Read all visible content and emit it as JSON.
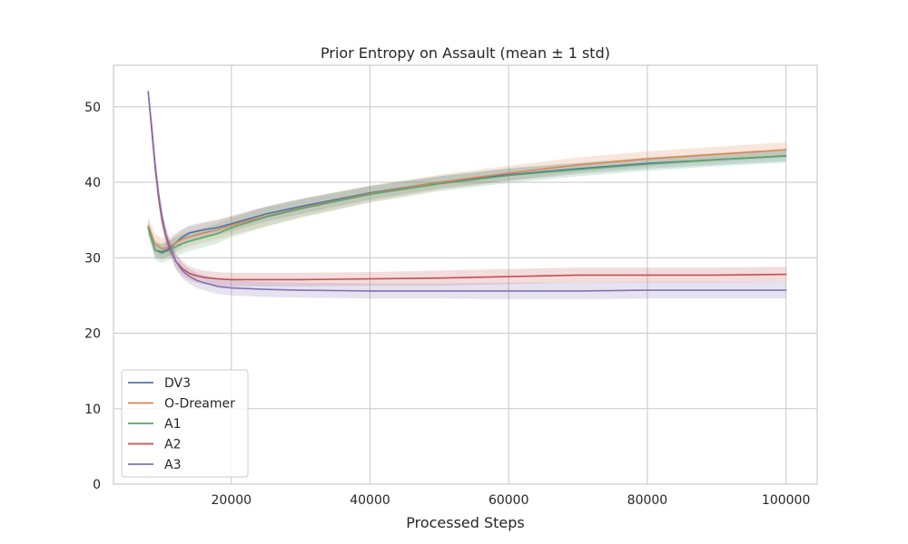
{
  "chart_data": {
    "type": "line",
    "title": "Prior Entropy on Assault (mean ± 1 std)",
    "xlabel": "Processed Steps",
    "ylabel": "",
    "xlim": [
      3000,
      104500
    ],
    "ylim": [
      0,
      55.5
    ],
    "xticks": [
      20000,
      40000,
      60000,
      80000,
      100000
    ],
    "yticks": [
      0,
      10,
      20,
      30,
      40,
      50
    ],
    "grid": true,
    "legend_position": "lower-left",
    "series": [
      {
        "name": "DV3",
        "color": "#4c72b0",
        "x": [
          8000,
          9000,
          10000,
          11000,
          12000,
          13000,
          14000,
          16000,
          18000,
          20000,
          25000,
          30000,
          40000,
          50000,
          60000,
          70000,
          80000,
          90000,
          100000
        ],
        "y": [
          34.0,
          31.0,
          30.8,
          31.2,
          32.0,
          32.8,
          33.3,
          33.7,
          34.0,
          34.5,
          35.8,
          36.8,
          38.6,
          40.0,
          41.0,
          41.8,
          42.5,
          43.0,
          43.5
        ],
        "std": [
          0.8,
          1.0,
          1.0,
          1.0,
          1.0,
          1.0,
          1.0,
          1.0,
          1.0,
          1.0,
          1.0,
          1.0,
          0.9,
          0.8,
          0.8,
          0.7,
          0.7,
          0.7,
          0.7
        ]
      },
      {
        "name": "O-Dreamer",
        "color": "#dd8452",
        "x": [
          8000,
          9000,
          10000,
          11000,
          12000,
          13000,
          14000,
          16000,
          18000,
          20000,
          25000,
          30000,
          40000,
          50000,
          60000,
          70000,
          80000,
          90000,
          100000
        ],
        "y": [
          34.2,
          31.8,
          31.2,
          31.4,
          32.0,
          32.5,
          32.8,
          33.3,
          33.7,
          34.3,
          35.5,
          36.6,
          38.5,
          40.0,
          41.2,
          42.3,
          43.1,
          43.7,
          44.3
        ],
        "std": [
          1.2,
          1.4,
          1.4,
          1.3,
          1.3,
          1.3,
          1.3,
          1.3,
          1.3,
          1.3,
          1.3,
          1.2,
          1.1,
          1.0,
          1.0,
          1.0,
          1.0,
          1.0,
          1.0
        ]
      },
      {
        "name": "A1",
        "color": "#55a868",
        "x": [
          8000,
          9000,
          10000,
          11000,
          12000,
          13000,
          14000,
          16000,
          18000,
          20000,
          25000,
          30000,
          40000,
          50000,
          60000,
          70000,
          80000,
          90000,
          100000
        ],
        "y": [
          34.0,
          31.0,
          30.6,
          31.0,
          31.5,
          31.9,
          32.2,
          32.7,
          33.2,
          34.0,
          35.4,
          36.5,
          38.4,
          39.8,
          40.9,
          41.7,
          42.4,
          43.0,
          43.5
        ],
        "std": [
          1.0,
          1.3,
          1.3,
          1.3,
          1.3,
          1.3,
          1.3,
          1.3,
          1.3,
          1.3,
          1.3,
          1.2,
          1.1,
          1.0,
          1.0,
          0.9,
          0.9,
          0.9,
          0.9
        ]
      },
      {
        "name": "A2",
        "color": "#c44e52",
        "x": [
          8000,
          8500,
          9000,
          9500,
          10000,
          10500,
          11000,
          12000,
          13000,
          14000,
          15000,
          16000,
          18000,
          20000,
          25000,
          30000,
          40000,
          50000,
          60000,
          70000,
          80000,
          90000,
          100000
        ],
        "y": [
          52.0,
          47.0,
          42.0,
          38.0,
          35.0,
          33.0,
          31.5,
          29.5,
          28.5,
          27.9,
          27.6,
          27.4,
          27.2,
          27.1,
          27.1,
          27.1,
          27.2,
          27.3,
          27.5,
          27.7,
          27.7,
          27.7,
          27.8
        ],
        "std": [
          0.6,
          0.8,
          1.0,
          1.0,
          1.0,
          1.0,
          1.0,
          1.0,
          1.0,
          0.9,
          0.9,
          0.9,
          0.9,
          0.9,
          0.9,
          0.9,
          0.9,
          1.0,
          1.0,
          1.0,
          1.0,
          1.0,
          1.0
        ]
      },
      {
        "name": "A3",
        "color": "#8172b3",
        "x": [
          8000,
          8500,
          9000,
          9500,
          10000,
          10500,
          11000,
          12000,
          13000,
          14000,
          15000,
          16000,
          18000,
          20000,
          25000,
          30000,
          40000,
          50000,
          60000,
          70000,
          80000,
          90000,
          100000
        ],
        "y": [
          52.0,
          47.5,
          42.5,
          38.5,
          35.5,
          33.3,
          31.8,
          29.5,
          28.2,
          27.5,
          27.0,
          26.7,
          26.2,
          26.0,
          25.8,
          25.7,
          25.6,
          25.6,
          25.6,
          25.6,
          25.7,
          25.7,
          25.7
        ],
        "std": [
          0.6,
          0.8,
          1.0,
          1.0,
          1.0,
          1.0,
          1.0,
          1.0,
          1.0,
          1.0,
          1.0,
          1.0,
          1.0,
          1.0,
          1.0,
          1.0,
          1.0,
          1.0,
          1.1,
          1.1,
          1.1,
          1.1,
          1.1
        ]
      }
    ]
  }
}
